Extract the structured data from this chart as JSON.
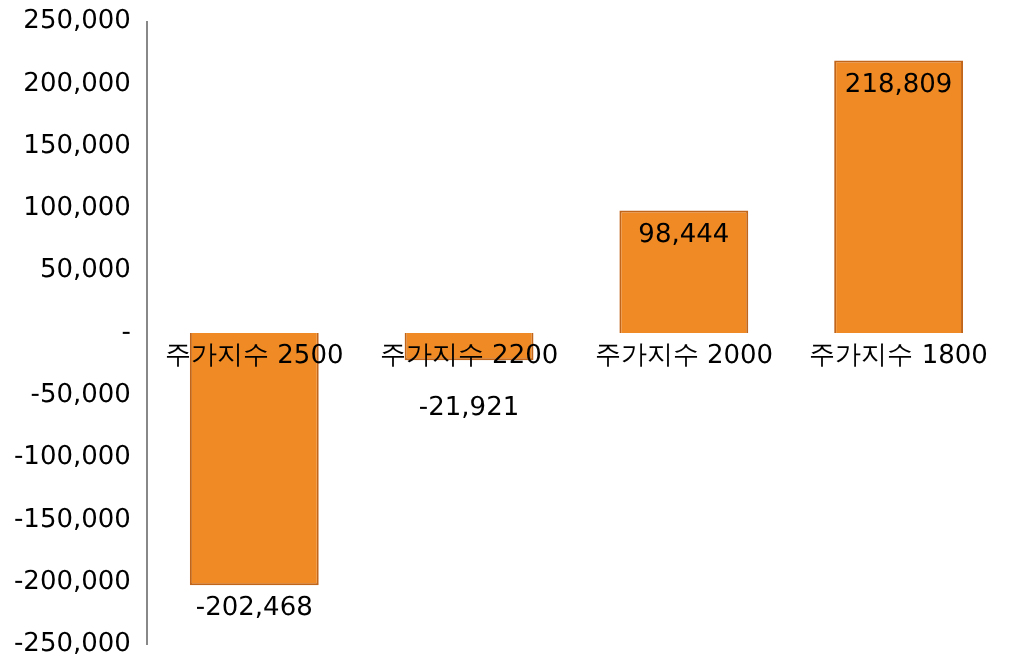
{
  "chart_data": {
    "type": "bar",
    "categories": [
      "주가지수 2500",
      "주가지수 2200",
      "주가지수 2000",
      "주가지수 1800"
    ],
    "values": [
      -202468,
      -21921,
      98444,
      218809
    ],
    "value_labels": [
      "-202,468",
      "-21,921",
      "98,444",
      "218,809"
    ],
    "color": "#f08a24",
    "ylim": [
      -250000,
      250000
    ],
    "yticks": [
      {
        "value": -250000,
        "label": "-250,000"
      },
      {
        "value": -200000,
        "label": "-200,000"
      },
      {
        "value": -150000,
        "label": "-150,000"
      },
      {
        "value": -100000,
        "label": "-100,000"
      },
      {
        "value": -50000,
        "label": "-50,000"
      },
      {
        "value": 0,
        "label": "-"
      },
      {
        "value": 50000,
        "label": "50,000"
      },
      {
        "value": 100000,
        "label": "100,000"
      },
      {
        "value": 150000,
        "label": "150,000"
      },
      {
        "value": 200000,
        "label": "200,000"
      },
      {
        "value": 250000,
        "label": "250,000"
      }
    ],
    "grid": false
  }
}
